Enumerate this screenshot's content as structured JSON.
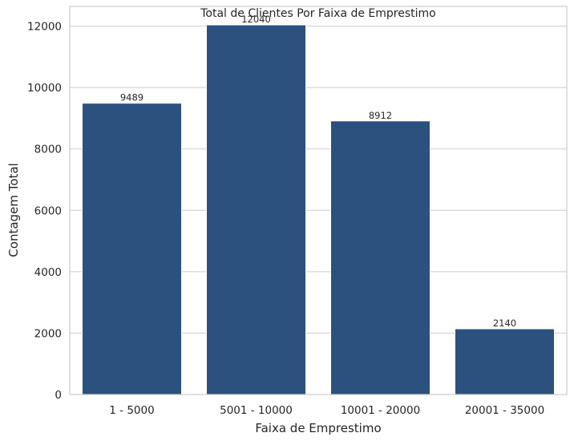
{
  "chart_data": {
    "type": "bar",
    "title": "Total de Clientes Por Faixa de Emprestimo",
    "xlabel": "Faixa de Emprestimo",
    "ylabel": "Contagem Total",
    "categories": [
      "1 - 5000",
      "5001 - 10000",
      "10001 - 20000",
      "20001 - 35000"
    ],
    "values": [
      9489,
      12040,
      8912,
      2140
    ],
    "data_labels": [
      "9489",
      "12040",
      "8912",
      "2140"
    ],
    "ylim": [
      0,
      12642
    ],
    "yticks": [
      0,
      2000,
      4000,
      6000,
      8000,
      10000,
      12000
    ],
    "ytick_labels": [
      "0",
      "2000",
      "4000",
      "6000",
      "8000",
      "10000",
      "12000"
    ],
    "grid": "horizontal",
    "bar_color": "#2b517e"
  }
}
